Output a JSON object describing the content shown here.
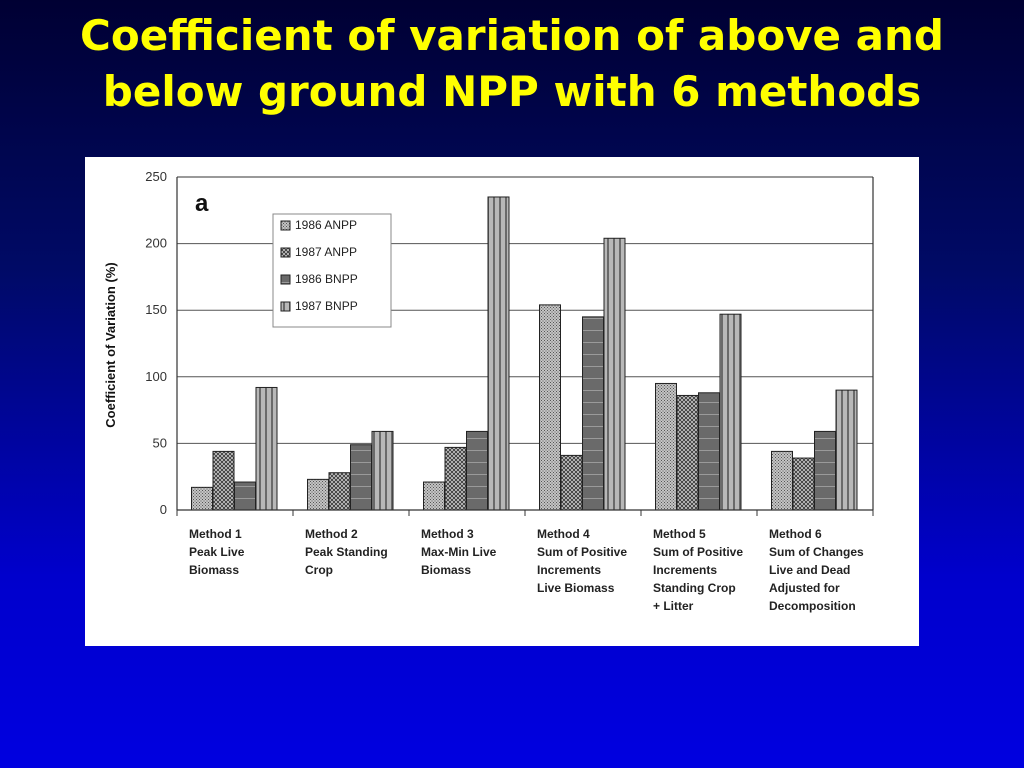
{
  "slide": {
    "title_line1": "Coefficient of variation of above and",
    "title_line2": "below ground NPP with 6 methods"
  },
  "colors": {
    "title": "#ffff00",
    "background_top": "#000033",
    "background_bottom": "#0000e0",
    "panel": "#ffffff"
  },
  "chart_data": {
    "type": "bar",
    "panel_label": "a",
    "title": "",
    "ylabel": "Coefficient of Variation (%)",
    "xlabel": "",
    "ylim": [
      0,
      250
    ],
    "yticks": [
      0,
      50,
      100,
      150,
      200,
      250
    ],
    "grid": true,
    "legend_position": "top-left",
    "categories": [
      [
        "Method 1",
        "Peak Live",
        "Biomass"
      ],
      [
        "Method 2",
        "Peak Standing",
        "Crop"
      ],
      [
        "Method 3",
        "Max-Min Live",
        "Biomass"
      ],
      [
        "Method 4",
        "Sum of Positive",
        "Increments",
        "Live Biomass"
      ],
      [
        "Method 5",
        "Sum of Positive",
        "Increments",
        "Standing Crop",
        "+ Litter"
      ],
      [
        "Method 6",
        "Sum of Changes",
        "Live and Dead",
        "Adjusted for",
        "Decomposition"
      ]
    ],
    "series": [
      {
        "name": "1986 ANPP",
        "values": [
          17,
          23,
          21,
          154,
          95,
          44
        ],
        "color": "#a8a8a8",
        "pattern": "fine-dots"
      },
      {
        "name": "1987 ANPP",
        "values": [
          44,
          28,
          47,
          41,
          86,
          39
        ],
        "color": "#8e8e8e",
        "pattern": "coarse-dots"
      },
      {
        "name": "1986 BNPP",
        "values": [
          21,
          49,
          59,
          145,
          88,
          59
        ],
        "color": "#6e6e6e",
        "pattern": "hlines"
      },
      {
        "name": "1987 BNPP",
        "values": [
          92,
          59,
          235,
          204,
          147,
          90
        ],
        "color": "#8a8a8a",
        "pattern": "vstripes"
      }
    ]
  }
}
